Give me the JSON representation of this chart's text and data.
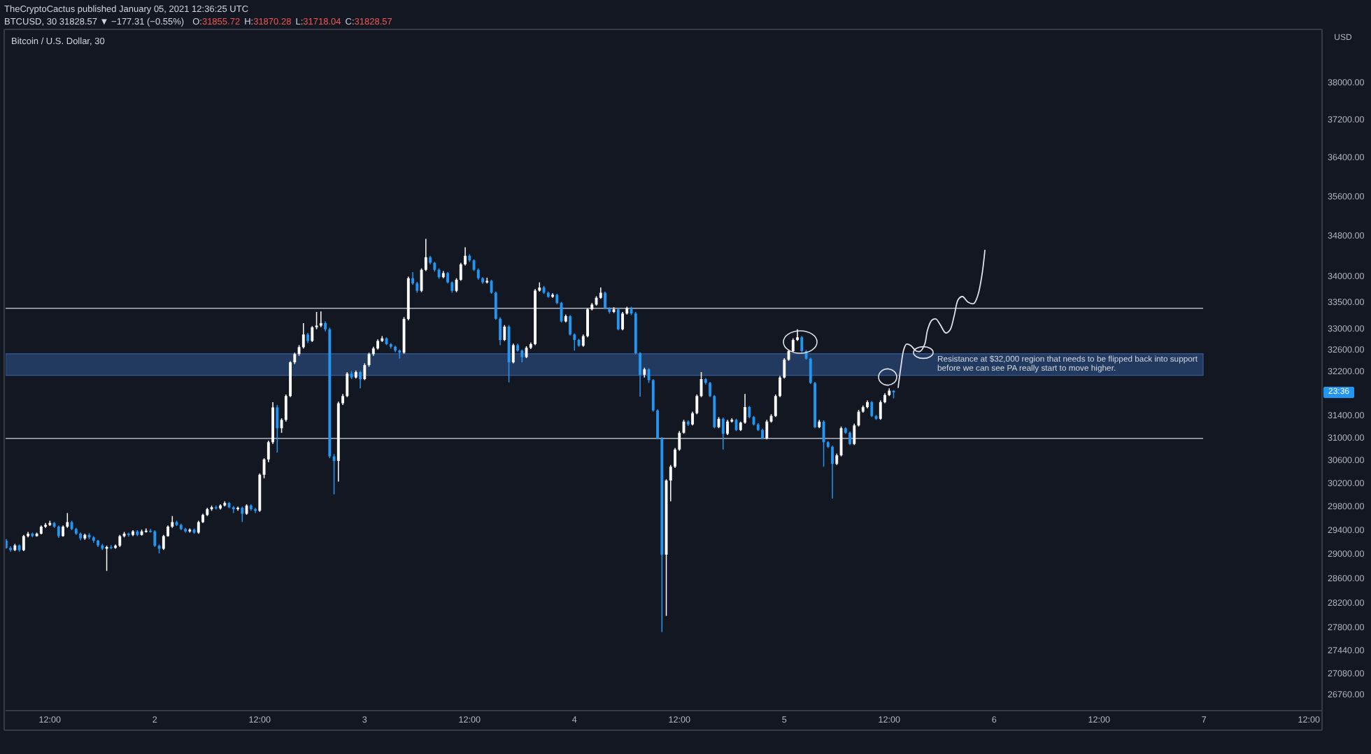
{
  "chart_data": {
    "type": "candlestick",
    "title": "Bitcoin / U.S. Dollar, 30",
    "subtitle": "BTCUSD, 30  31828.57 ▼ −177.31 (−0.55%)",
    "ylabel": "USD",
    "annotations": [
      "TheCryptoCactus published January 05, 2021 12:36:25 UTC",
      "O:31855.72",
      "H:31870.28",
      "L:31718.04",
      "C:31828.57",
      {
        "text": "23:36",
        "y": 31828.57
      }
    ],
    "x": [
      "2021-01-01T07:00",
      "2021-01-01T07:30",
      "2021-01-01T08:00",
      "2021-01-01T08:30",
      "2021-01-01T09:00",
      "2021-01-01T09:30",
      "2021-01-01T10:00",
      "2021-01-01T10:30",
      "2021-01-01T11:00",
      "2021-01-01T11:30",
      "2021-01-01T12:00",
      "2021-01-01T12:30",
      "2021-01-01T13:00",
      "2021-01-01T13:30",
      "2021-01-01T14:00",
      "2021-01-01T14:30",
      "2021-01-01T15:00",
      "2021-01-01T15:30",
      "2021-01-01T16:00",
      "2021-01-01T16:30",
      "2021-01-01T17:00",
      "2021-01-01T17:30",
      "2021-01-01T18:00",
      "2021-01-01T18:30",
      "2021-01-01T19:00",
      "2021-01-01T19:30",
      "2021-01-01T20:00",
      "2021-01-01T20:30",
      "2021-01-01T21:00",
      "2021-01-01T21:30",
      "2021-01-01T22:00",
      "2021-01-01T22:30",
      "2021-01-01T23:00",
      "2021-01-01T23:30",
      "2021-01-02T00:00",
      "2021-01-02T00:30",
      "2021-01-02T01:00",
      "2021-01-02T01:30",
      "2021-01-02T02:00",
      "2021-01-02T02:30",
      "2021-01-02T03:00",
      "2021-01-02T03:30",
      "2021-01-02T04:00",
      "2021-01-02T04:30",
      "2021-01-02T05:00",
      "2021-01-02T05:30",
      "2021-01-02T06:00",
      "2021-01-02T06:30",
      "2021-01-02T07:00",
      "2021-01-02T07:30",
      "2021-01-02T08:00",
      "2021-01-02T08:30",
      "2021-01-02T09:00",
      "2021-01-02T09:30",
      "2021-01-02T10:00",
      "2021-01-02T10:30",
      "2021-01-02T11:00",
      "2021-01-02T11:30",
      "2021-01-02T12:00",
      "2021-01-02T12:30",
      "2021-01-02T13:00",
      "2021-01-02T13:30",
      "2021-01-02T14:00",
      "2021-01-02T14:30",
      "2021-01-02T15:00",
      "2021-01-02T15:30",
      "2021-01-02T16:00",
      "2021-01-02T16:30",
      "2021-01-02T17:00",
      "2021-01-02T17:30",
      "2021-01-02T18:00",
      "2021-01-02T18:30",
      "2021-01-02T19:00",
      "2021-01-02T19:30",
      "2021-01-02T20:00",
      "2021-01-02T20:30",
      "2021-01-02T21:00",
      "2021-01-02T21:30",
      "2021-01-02T22:00",
      "2021-01-02T22:30",
      "2021-01-02T23:00",
      "2021-01-02T23:30",
      "2021-01-03T00:00",
      "2021-01-03T00:30",
      "2021-01-03T01:00",
      "2021-01-03T01:30",
      "2021-01-03T02:00",
      "2021-01-03T02:30",
      "2021-01-03T03:00",
      "2021-01-03T03:30",
      "2021-01-03T04:00",
      "2021-01-03T04:30",
      "2021-01-03T05:00",
      "2021-01-03T05:30",
      "2021-01-03T06:00",
      "2021-01-03T06:30",
      "2021-01-03T07:00",
      "2021-01-03T07:30",
      "2021-01-03T08:00",
      "2021-01-03T08:30",
      "2021-01-03T09:00",
      "2021-01-03T09:30",
      "2021-01-03T10:00",
      "2021-01-03T10:30",
      "2021-01-03T11:00",
      "2021-01-03T11:30",
      "2021-01-03T12:00",
      "2021-01-03T12:30",
      "2021-01-03T13:00",
      "2021-01-03T13:30",
      "2021-01-03T14:00",
      "2021-01-03T14:30",
      "2021-01-03T15:00",
      "2021-01-03T15:30",
      "2021-01-03T16:00",
      "2021-01-03T16:30",
      "2021-01-03T17:00",
      "2021-01-03T17:30",
      "2021-01-03T18:00",
      "2021-01-03T18:30",
      "2021-01-03T19:00",
      "2021-01-03T19:30",
      "2021-01-03T20:00",
      "2021-01-03T20:30",
      "2021-01-03T21:00",
      "2021-01-03T21:30",
      "2021-01-03T22:00",
      "2021-01-03T22:30",
      "2021-01-03T23:00",
      "2021-01-03T23:30",
      "2021-01-04T00:00",
      "2021-01-04T00:30",
      "2021-01-04T01:00",
      "2021-01-04T01:30",
      "2021-01-04T02:00",
      "2021-01-04T02:30",
      "2021-01-04T03:00",
      "2021-01-04T03:30",
      "2021-01-04T04:00",
      "2021-01-04T04:30",
      "2021-01-04T05:00",
      "2021-01-04T05:30",
      "2021-01-04T06:00",
      "2021-01-04T06:30",
      "2021-01-04T07:00",
      "2021-01-04T07:30",
      "2021-01-04T08:00",
      "2021-01-04T08:30",
      "2021-01-04T09:00",
      "2021-01-04T09:30",
      "2021-01-04T10:00",
      "2021-01-04T10:30",
      "2021-01-04T11:00",
      "2021-01-04T11:30",
      "2021-01-04T12:00",
      "2021-01-04T12:30",
      "2021-01-04T13:00",
      "2021-01-04T13:30",
      "2021-01-04T14:00",
      "2021-01-04T14:30",
      "2021-01-04T15:00",
      "2021-01-04T15:30",
      "2021-01-04T16:00",
      "2021-01-04T16:30",
      "2021-01-04T17:00",
      "2021-01-04T17:30",
      "2021-01-04T18:00",
      "2021-01-04T18:30",
      "2021-01-04T19:00",
      "2021-01-04T19:30",
      "2021-01-04T20:00",
      "2021-01-04T20:30",
      "2021-01-04T21:00",
      "2021-01-04T21:30",
      "2021-01-04T22:00",
      "2021-01-04T22:30",
      "2021-01-04T23:00",
      "2021-01-04T23:30",
      "2021-01-05T00:00",
      "2021-01-05T00:30",
      "2021-01-05T01:00",
      "2021-01-05T01:30",
      "2021-01-05T02:00",
      "2021-01-05T02:30",
      "2021-01-05T03:00",
      "2021-01-05T03:30",
      "2021-01-05T04:00",
      "2021-01-05T04:30",
      "2021-01-05T05:00",
      "2021-01-05T05:30",
      "2021-01-05T06:00",
      "2021-01-05T06:30",
      "2021-01-05T07:00",
      "2021-01-05T07:30",
      "2021-01-05T08:00",
      "2021-01-05T08:30",
      "2021-01-05T09:00",
      "2021-01-05T09:30",
      "2021-01-05T10:00",
      "2021-01-05T10:30",
      "2021-01-05T11:00",
      "2021-01-05T11:30",
      "2021-01-05T12:00",
      "2021-01-05T12:30"
    ],
    "ohlc": [
      [
        29233,
        29260,
        29100,
        29115
      ],
      [
        29115,
        29140,
        29050,
        29076
      ],
      [
        29076,
        29180,
        29060,
        29155
      ],
      [
        29155,
        29170,
        29050,
        29076
      ],
      [
        29076,
        29330,
        29060,
        29311
      ],
      [
        29311,
        29380,
        29290,
        29351
      ],
      [
        29351,
        29370,
        29290,
        29311
      ],
      [
        29311,
        29370,
        29300,
        29351
      ],
      [
        29351,
        29490,
        29340,
        29470
      ],
      [
        29470,
        29530,
        29450,
        29500
      ],
      [
        29500,
        29570,
        29480,
        29530
      ],
      [
        29530,
        29550,
        29450,
        29470
      ],
      [
        29470,
        29490,
        29280,
        29311
      ],
      [
        29311,
        29490,
        29300,
        29470
      ],
      [
        29470,
        29700,
        29450,
        29547
      ],
      [
        29547,
        29570,
        29410,
        29430
      ],
      [
        29430,
        29450,
        29330,
        29351
      ],
      [
        29351,
        29370,
        29240,
        29272
      ],
      [
        29272,
        29350,
        29250,
        29330
      ],
      [
        29330,
        29360,
        29260,
        29290
      ],
      [
        29290,
        29310,
        29200,
        29233
      ],
      [
        29233,
        29250,
        29130,
        29155
      ],
      [
        29155,
        29180,
        29080,
        29100
      ],
      [
        29100,
        29150,
        28730,
        29130
      ],
      [
        29130,
        29160,
        29090,
        29115
      ],
      [
        29115,
        29170,
        29100,
        29150
      ],
      [
        29150,
        29330,
        29130,
        29311
      ],
      [
        29311,
        29380,
        29290,
        29351
      ],
      [
        29351,
        29370,
        29300,
        29330
      ],
      [
        29330,
        29410,
        29310,
        29391
      ],
      [
        29391,
        29410,
        29310,
        29330
      ],
      [
        29330,
        29420,
        29320,
        29391
      ],
      [
        29391,
        29440,
        29370,
        29400
      ],
      [
        29400,
        29430,
        29370,
        29391
      ],
      [
        29391,
        29410,
        29130,
        29150
      ],
      [
        29150,
        29170,
        29020,
        29100
      ],
      [
        29100,
        29330,
        29080,
        29311
      ],
      [
        29311,
        29490,
        29300,
        29470
      ],
      [
        29470,
        29650,
        29450,
        29547
      ],
      [
        29547,
        29570,
        29480,
        29500
      ],
      [
        29500,
        29520,
        29410,
        29430
      ],
      [
        29430,
        29450,
        29370,
        29391
      ],
      [
        29391,
        29440,
        29370,
        29420
      ],
      [
        29420,
        29440,
        29350,
        29370
      ],
      [
        29370,
        29570,
        29350,
        29547
      ],
      [
        29547,
        29690,
        29530,
        29669
      ],
      [
        29669,
        29790,
        29650,
        29765
      ],
      [
        29765,
        29830,
        29740,
        29800
      ],
      [
        29800,
        29830,
        29760,
        29780
      ],
      [
        29780,
        29850,
        29760,
        29828
      ],
      [
        29828,
        29900,
        29810,
        29870
      ],
      [
        29870,
        29890,
        29780,
        29800
      ],
      [
        29800,
        29820,
        29700,
        29765
      ],
      [
        29765,
        29810,
        29740,
        29790
      ],
      [
        29790,
        29810,
        29550,
        29690
      ],
      [
        29690,
        29850,
        29670,
        29828
      ],
      [
        29828,
        29850,
        29740,
        29765
      ],
      [
        29765,
        29790,
        29700,
        29740
      ],
      [
        29740,
        30380,
        29720,
        30360
      ],
      [
        30360,
        30650,
        30300,
        30630
      ],
      [
        30630,
        30960,
        30580,
        30930
      ],
      [
        30930,
        31650,
        30900,
        31555
      ],
      [
        31555,
        31600,
        30750,
        31180
      ],
      [
        31180,
        31360,
        31100,
        31330
      ],
      [
        31330,
        31790,
        31300,
        31760
      ],
      [
        31760,
        32400,
        31740,
        32380
      ],
      [
        32380,
        32560,
        32350,
        32535
      ],
      [
        32535,
        32700,
        32500,
        32666
      ],
      [
        32666,
        33117,
        32640,
        32900
      ],
      [
        32900,
        32930,
        32740,
        32780
      ],
      [
        32780,
        33060,
        32760,
        33036
      ],
      [
        33036,
        33330,
        33000,
        33070
      ],
      [
        33070,
        33340,
        33040,
        33117
      ],
      [
        33117,
        33150,
        32960,
        33000
      ],
      [
        33000,
        33030,
        30650,
        30680
      ],
      [
        30680,
        30720,
        30020,
        30600
      ],
      [
        30600,
        31660,
        30240,
        31630
      ],
      [
        31630,
        31800,
        31600,
        31760
      ],
      [
        31760,
        32200,
        31740,
        32170
      ],
      [
        32170,
        32220,
        32070,
        32100
      ],
      [
        32100,
        32230,
        32080,
        32200
      ],
      [
        32200,
        32220,
        31900,
        32070
      ],
      [
        32070,
        32360,
        32050,
        32330
      ],
      [
        32330,
        32560,
        32300,
        32535
      ],
      [
        32535,
        32670,
        32500,
        32640
      ],
      [
        32640,
        32810,
        32620,
        32780
      ],
      [
        32780,
        32870,
        32760,
        32830
      ],
      [
        32830,
        32850,
        32700,
        32720
      ],
      [
        32720,
        32740,
        32640,
        32670
      ],
      [
        32670,
        32690,
        32570,
        32600
      ],
      [
        32600,
        32620,
        32450,
        32560
      ],
      [
        32560,
        33230,
        32540,
        33196
      ],
      [
        33196,
        34010,
        33170,
        33980
      ],
      [
        33980,
        34100,
        33850,
        33880
      ],
      [
        33880,
        33910,
        33700,
        33735
      ],
      [
        33735,
        34170,
        33710,
        34144
      ],
      [
        34144,
        34755,
        34120,
        34392
      ],
      [
        34392,
        34420,
        34250,
        34281
      ],
      [
        34281,
        34300,
        34110,
        34144
      ],
      [
        34144,
        34170,
        33970,
        34000
      ],
      [
        34000,
        34120,
        33980,
        34080
      ],
      [
        34080,
        34100,
        33880,
        33900
      ],
      [
        33900,
        33920,
        33700,
        33735
      ],
      [
        33735,
        33980,
        33710,
        33950
      ],
      [
        33950,
        34280,
        33930,
        34250
      ],
      [
        34250,
        34590,
        34230,
        34420
      ],
      [
        34420,
        34450,
        34300,
        34330
      ],
      [
        34330,
        34350,
        34120,
        34144
      ],
      [
        34144,
        34170,
        33950,
        33980
      ],
      [
        33980,
        34000,
        33870,
        33900
      ],
      [
        33900,
        33990,
        33880,
        33930
      ],
      [
        33930,
        33950,
        33680,
        33700
      ],
      [
        33700,
        33720,
        33180,
        33200
      ],
      [
        33200,
        33230,
        32700,
        32800
      ],
      [
        32800,
        33080,
        32780,
        33050
      ],
      [
        33050,
        33080,
        32010,
        32380
      ],
      [
        32380,
        32730,
        32360,
        32700
      ],
      [
        32700,
        32730,
        32580,
        32600
      ],
      [
        32600,
        32620,
        32380,
        32480
      ],
      [
        32480,
        32680,
        32460,
        32650
      ],
      [
        32650,
        32750,
        32630,
        32720
      ],
      [
        32720,
        33770,
        32700,
        33740
      ],
      [
        33740,
        33900,
        33720,
        33800
      ],
      [
        33800,
        33830,
        33680,
        33700
      ],
      [
        33700,
        33720,
        33600,
        33620
      ],
      [
        33620,
        33690,
        33600,
        33660
      ],
      [
        33660,
        33680,
        33480,
        33500
      ],
      [
        33500,
        33520,
        33130,
        33150
      ],
      [
        33150,
        33280,
        33130,
        33250
      ],
      [
        33250,
        33270,
        32880,
        32900
      ],
      [
        32900,
        32920,
        32600,
        32800
      ],
      [
        32800,
        32820,
        32670,
        32690
      ],
      [
        32690,
        32900,
        32670,
        32870
      ],
      [
        32870,
        33400,
        32850,
        33380
      ],
      [
        33380,
        33500,
        33360,
        33470
      ],
      [
        33470,
        33630,
        33450,
        33600
      ],
      [
        33600,
        33800,
        33580,
        33700
      ],
      [
        33700,
        33720,
        33380,
        33400
      ],
      [
        33400,
        33420,
        33300,
        33330
      ],
      [
        33330,
        33420,
        33310,
        33380
      ],
      [
        33380,
        33400,
        32980,
        33000
      ],
      [
        33000,
        33330,
        32980,
        33300
      ],
      [
        33300,
        33430,
        33280,
        33400
      ],
      [
        33400,
        33430,
        33270,
        33300
      ],
      [
        33300,
        33330,
        32530,
        32550
      ],
      [
        32550,
        32570,
        31750,
        32150
      ],
      [
        32150,
        32280,
        32100,
        32250
      ],
      [
        32250,
        32270,
        32000,
        32050
      ],
      [
        32050,
        32070,
        31480,
        31500
      ],
      [
        31500,
        31520,
        30980,
        31000
      ],
      [
        31000,
        31020,
        27740,
        29000
      ],
      [
        29000,
        30280,
        28000,
        30260
      ],
      [
        30260,
        30530,
        29900,
        30500
      ],
      [
        30500,
        30830,
        30480,
        30800
      ],
      [
        30800,
        31130,
        30780,
        31100
      ],
      [
        31100,
        31330,
        31080,
        31300
      ],
      [
        31300,
        31320,
        31220,
        31250
      ],
      [
        31250,
        31480,
        31230,
        31450
      ],
      [
        31450,
        31790,
        31430,
        31760
      ],
      [
        31760,
        32200,
        31740,
        32070
      ],
      [
        32070,
        32090,
        31970,
        32000
      ],
      [
        32000,
        32020,
        31740,
        31760
      ],
      [
        31760,
        31780,
        31180,
        31200
      ],
      [
        31200,
        31380,
        31180,
        31350
      ],
      [
        31350,
        31370,
        30800,
        31080
      ],
      [
        31080,
        31330,
        31060,
        31300
      ],
      [
        31300,
        31360,
        31280,
        31330
      ],
      [
        31330,
        31350,
        31130,
        31150
      ],
      [
        31150,
        31300,
        31130,
        31280
      ],
      [
        31280,
        31800,
        31260,
        31560
      ],
      [
        31560,
        31580,
        31360,
        31380
      ],
      [
        31380,
        31400,
        31230,
        31250
      ],
      [
        31250,
        31270,
        31130,
        31150
      ],
      [
        31150,
        31170,
        30980,
        31000
      ],
      [
        31000,
        31330,
        30980,
        31300
      ],
      [
        31300,
        31430,
        31280,
        31400
      ],
      [
        31400,
        31790,
        31380,
        31760
      ],
      [
        31760,
        32130,
        31740,
        32100
      ],
      [
        32100,
        32460,
        32080,
        32430
      ],
      [
        32430,
        32620,
        32410,
        32590
      ],
      [
        32590,
        32830,
        32570,
        32800
      ],
      [
        32800,
        33000,
        32780,
        32850
      ],
      [
        32850,
        32870,
        32570,
        32590
      ],
      [
        32590,
        32610,
        32430,
        32450
      ],
      [
        32450,
        32470,
        31980,
        32000
      ],
      [
        32000,
        32020,
        31180,
        31200
      ],
      [
        31200,
        31330,
        31180,
        31300
      ],
      [
        31300,
        31320,
        30500,
        30930
      ],
      [
        30930,
        30950,
        30830,
        30850
      ],
      [
        30850,
        30870,
        29950,
        30550
      ],
      [
        30550,
        30730,
        30530,
        30700
      ],
      [
        30700,
        31210,
        30680,
        31180
      ],
      [
        31180,
        31200,
        31080,
        31100
      ],
      [
        31100,
        31120,
        30880,
        30900
      ],
      [
        30900,
        31260,
        30880,
        31230
      ],
      [
        31230,
        31510,
        31210,
        31480
      ],
      [
        31480,
        31590,
        31460,
        31560
      ],
      [
        31560,
        31680,
        31540,
        31650
      ],
      [
        31650,
        31670,
        31380,
        31400
      ],
      [
        31400,
        31420,
        31330,
        31350
      ],
      [
        31350,
        31680,
        31330,
        31650
      ],
      [
        31650,
        31810,
        31630,
        31780
      ],
      [
        31780,
        31900,
        31760,
        31860
      ],
      [
        31855.72,
        31870.28,
        31718.04,
        31828.57
      ]
    ],
    "colors": [
      "#2196f3",
      "#2196f3",
      "#ffffff",
      "#2196f3",
      "#ffffff",
      "#ffffff",
      "#2196f3",
      "#ffffff",
      "#ffffff",
      "#ffffff",
      "#ffffff",
      "#2196f3",
      "#2196f3",
      "#ffffff",
      "#ffffff",
      "#2196f3",
      "#2196f3",
      "#2196f3",
      "#ffffff",
      "#2196f3",
      "#2196f3",
      "#2196f3",
      "#2196f3",
      "#ffffff",
      "#2196f3",
      "#ffffff",
      "#ffffff",
      "#ffffff",
      "#2196f3",
      "#ffffff",
      "#2196f3",
      "#ffffff",
      "#ffffff",
      "#2196f3",
      "#2196f3",
      "#2196f3",
      "#ffffff",
      "#ffffff",
      "#ffffff",
      "#2196f3",
      "#2196f3",
      "#2196f3",
      "#ffffff",
      "#2196f3",
      "#ffffff",
      "#ffffff",
      "#ffffff",
      "#ffffff",
      "#2196f3",
      "#ffffff",
      "#ffffff",
      "#2196f3",
      "#2196f3",
      "#ffffff",
      "#2196f3",
      "#ffffff",
      "#2196f3",
      "#2196f3",
      "#ffffff",
      "#ffffff",
      "#ffffff",
      "#ffffff",
      "#2196f3",
      "#ffffff",
      "#ffffff",
      "#ffffff",
      "#ffffff",
      "#ffffff",
      "#ffffff",
      "#2196f3",
      "#ffffff",
      "#ffffff",
      "#ffffff",
      "#2196f3",
      "#2196f3",
      "#2196f3",
      "#ffffff",
      "#ffffff",
      "#ffffff",
      "#2196f3",
      "#ffffff",
      "#2196f3",
      "#ffffff",
      "#ffffff",
      "#ffffff",
      "#ffffff",
      "#ffffff",
      "#2196f3",
      "#2196f3",
      "#2196f3",
      "#2196f3",
      "#ffffff",
      "#ffffff",
      "#2196f3",
      "#2196f3",
      "#ffffff",
      "#ffffff",
      "#2196f3",
      "#2196f3",
      "#2196f3",
      "#ffffff",
      "#2196f3",
      "#2196f3",
      "#ffffff",
      "#ffffff",
      "#ffffff",
      "#2196f3",
      "#2196f3",
      "#2196f3",
      "#2196f3",
      "#ffffff",
      "#2196f3",
      "#2196f3",
      "#2196f3",
      "#ffffff",
      "#2196f3",
      "#ffffff",
      "#2196f3",
      "#2196f3",
      "#ffffff",
      "#ffffff",
      "#ffffff",
      "#ffffff",
      "#2196f3",
      "#2196f3",
      "#ffffff",
      "#2196f3",
      "#2196f3",
      "#ffffff",
      "#2196f3",
      "#2196f3",
      "#2196f3",
      "#ffffff",
      "#ffffff",
      "#ffffff",
      "#ffffff",
      "#ffffff",
      "#2196f3",
      "#2196f3",
      "#ffffff",
      "#2196f3",
      "#ffffff",
      "#ffffff",
      "#2196f3",
      "#2196f3",
      "#2196f3",
      "#ffffff",
      "#2196f3",
      "#2196f3",
      "#2196f3",
      "#2196f3",
      "#ffffff",
      "#ffffff",
      "#ffffff",
      "#ffffff",
      "#ffffff",
      "#2196f3",
      "#ffffff",
      "#ffffff",
      "#ffffff",
      "#2196f3",
      "#2196f3",
      "#2196f3",
      "#ffffff",
      "#2196f3",
      "#ffffff",
      "#ffffff",
      "#2196f3",
      "#ffffff",
      "#ffffff",
      "#2196f3",
      "#2196f3",
      "#2196f3",
      "#2196f3",
      "#ffffff",
      "#ffffff",
      "#ffffff",
      "#ffffff",
      "#ffffff",
      "#ffffff",
      "#ffffff",
      "#ffffff",
      "#2196f3",
      "#2196f3",
      "#2196f3",
      "#2196f3",
      "#ffffff",
      "#2196f3",
      "#2196f3",
      "#2196f3",
      "#ffffff",
      "#ffffff",
      "#2196f3",
      "#2196f3",
      "#ffffff",
      "#ffffff",
      "#ffffff",
      "#ffffff",
      "#2196f3",
      "#2196f3",
      "#ffffff",
      "#ffffff",
      "#ffffff",
      "#2196f3"
    ],
    "xlim": [
      "2021-01-01T06:56",
      "2021-01-07T13:30"
    ],
    "xticks": [
      {
        "value": "2021-01-01T12:00",
        "label": "12:00"
      },
      {
        "value": "2021-01-02",
        "label": "2"
      },
      {
        "value": "2021-01-02T12:00",
        "label": "12:00"
      },
      {
        "value": "2021-01-03",
        "label": "3"
      },
      {
        "value": "2021-01-03T12:00",
        "label": "12:00"
      },
      {
        "value": "2021-01-04",
        "label": "4"
      },
      {
        "value": "2021-01-04T12:00",
        "label": "12:00"
      },
      {
        "value": "2021-01-05",
        "label": "5"
      },
      {
        "value": "2021-01-05T12:00",
        "label": "12:00"
      },
      {
        "value": "2021-01-06",
        "label": "6"
      },
      {
        "value": "2021-01-06T12:00",
        "label": "12:00"
      },
      {
        "value": "2021-01-07",
        "label": "7"
      },
      {
        "value": "2021-01-07T12:00",
        "label": "12:00"
      }
    ],
    "ylim": [
      26520,
      39190
    ],
    "log": "y",
    "yticks": [
      {
        "value": 38000,
        "label": "38000.00"
      },
      {
        "value": 37200,
        "label": "37200.00"
      },
      {
        "value": 36400,
        "label": "36400.00"
      },
      {
        "value": 35600,
        "label": "35600.00"
      },
      {
        "value": 34800,
        "label": "34800.00"
      },
      {
        "value": 34000,
        "label": "34000.00"
      },
      {
        "value": 33500,
        "label": "33500.00"
      },
      {
        "value": 33000,
        "label": "33000.00"
      },
      {
        "value": 32600,
        "label": "32600.00"
      },
      {
        "value": 32200,
        "label": "32200.00"
      },
      {
        "value": 31400,
        "label": "31400.00"
      },
      {
        "value": 31000,
        "label": "31000.00"
      },
      {
        "value": 30600,
        "label": "30600.00"
      },
      {
        "value": 30200,
        "label": "30200.00"
      },
      {
        "value": 29800,
        "label": "29800.00"
      },
      {
        "value": 29400,
        "label": "29400.00"
      },
      {
        "value": 29000,
        "label": "29000.00"
      },
      {
        "value": 28600,
        "label": "28600.00"
      },
      {
        "value": 28200,
        "label": "28200.00"
      },
      {
        "value": 27800,
        "label": "27800.00"
      },
      {
        "value": 27440,
        "label": "27440.00"
      },
      {
        "value": 27080,
        "label": "27080.00"
      },
      {
        "value": 26760,
        "label": "26760.00"
      }
    ],
    "ref_lines": [
      {
        "axis": "y",
        "value": 33400,
        "color": "#b2b5be"
      },
      {
        "axis": "y",
        "value": 31000,
        "color": "#b2b5be"
      }
    ],
    "bands": [
      {
        "axis": "y",
        "from": 32140,
        "to": 32540,
        "color": "#233a60",
        "label": "Resistance at $32,000 region that needs to be flipped back into support before we can see PA really start to move higher."
      }
    ]
  }
}
